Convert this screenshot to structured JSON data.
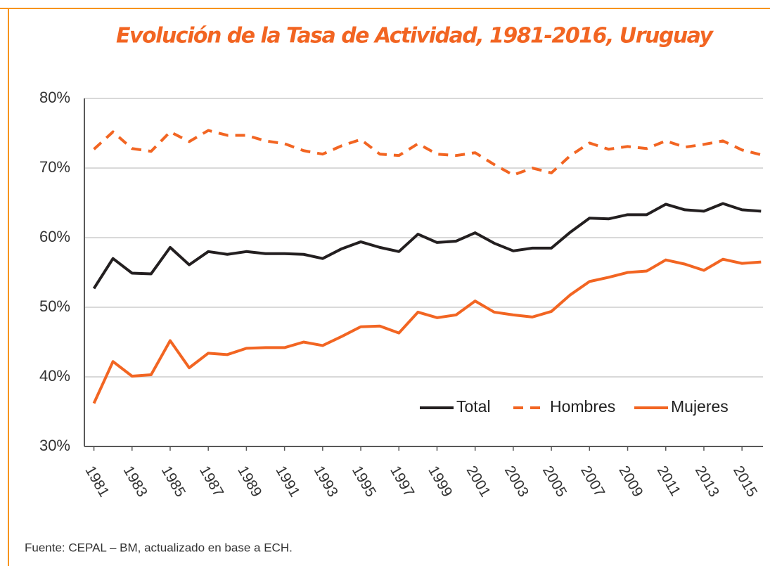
{
  "chart_data": {
    "type": "line",
    "title": "Evolución de la Tasa de Actividad, 1981-2016, Uruguay",
    "source": "Fuente: CEPAL – BM, actualizado en base a ECH.",
    "x": [
      1981,
      1982,
      1983,
      1984,
      1985,
      1986,
      1987,
      1988,
      1989,
      1990,
      1991,
      1992,
      1993,
      1994,
      1995,
      1996,
      1997,
      1998,
      1999,
      2000,
      2001,
      2002,
      2003,
      2004,
      2005,
      2006,
      2007,
      2008,
      2009,
      2010,
      2011,
      2012,
      2013,
      2014,
      2015,
      2016
    ],
    "series": [
      {
        "name": "Total",
        "color": "#231f20",
        "values": [
          52.7,
          57.0,
          54.9,
          54.8,
          58.6,
          56.1,
          58.0,
          57.6,
          58.0,
          57.7,
          57.7,
          57.6,
          57.0,
          58.4,
          59.4,
          58.6,
          58.0,
          60.5,
          59.3,
          59.5,
          60.7,
          59.2,
          58.1,
          58.5,
          58.5,
          60.8,
          62.8,
          62.7,
          63.3,
          63.3,
          64.8,
          64.0,
          63.8,
          64.9,
          64.0,
          63.8
        ]
      },
      {
        "name": "Hombres",
        "color": "#f26522",
        "dashed": true,
        "values": [
          72.7,
          75.2,
          72.8,
          72.4,
          75.2,
          73.8,
          75.4,
          74.7,
          74.7,
          73.9,
          73.5,
          72.5,
          72.0,
          73.2,
          74.1,
          72.0,
          71.8,
          73.5,
          72.0,
          71.8,
          72.2,
          70.5,
          69.0,
          70.0,
          69.3,
          71.8,
          73.6,
          72.7,
          73.1,
          72.8,
          73.9,
          73.0,
          73.4,
          73.9,
          72.6,
          71.9
        ]
      },
      {
        "name": "Mujeres",
        "color": "#f26522",
        "values": [
          36.2,
          42.2,
          40.1,
          40.3,
          45.2,
          41.3,
          43.4,
          43.2,
          44.1,
          44.2,
          44.2,
          45.0,
          44.5,
          45.8,
          47.2,
          47.3,
          46.3,
          49.3,
          48.5,
          48.9,
          50.9,
          49.3,
          48.9,
          48.6,
          49.4,
          51.8,
          53.7,
          54.3,
          55.0,
          55.2,
          56.8,
          56.2,
          55.3,
          56.9,
          56.3,
          56.5
        ]
      }
    ],
    "xlim": [
      1980.5,
      2016.1
    ],
    "xticks": [
      1981,
      1983,
      1985,
      1987,
      1989,
      1991,
      1993,
      1995,
      1997,
      1999,
      2001,
      2003,
      2005,
      2007,
      2009,
      2011,
      2013,
      2015
    ],
    "ylim": [
      30,
      80
    ],
    "yticks": [
      {
        "value": 30,
        "label": "30%"
      },
      {
        "value": 40,
        "label": "40%"
      },
      {
        "value": 50,
        "label": "50%"
      },
      {
        "value": 60,
        "label": "60%"
      },
      {
        "value": 70,
        "label": "70%"
      },
      {
        "value": 80,
        "label": "80%"
      }
    ],
    "grid": true,
    "legend": "lower right"
  }
}
